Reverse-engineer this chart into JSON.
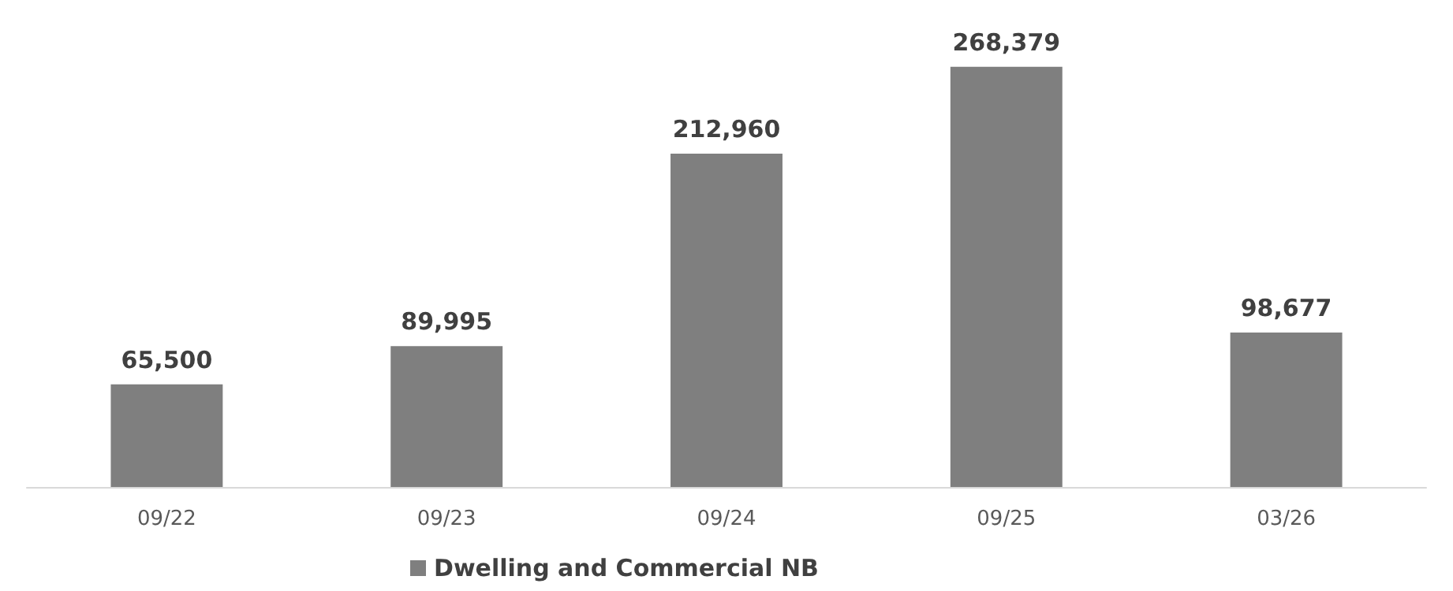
{
  "chart_data": {
    "type": "bar",
    "categories": [
      "09/22",
      "09/23",
      "09/24",
      "09/25",
      "03/26"
    ],
    "series": [
      {
        "name": "Dwelling and Commercial NB",
        "color": "#7f7f7f",
        "values": [
          65500,
          89995,
          212960,
          268379,
          98677
        ],
        "value_labels": [
          "65,500",
          "89,995",
          "212,960",
          "268,379",
          "98,677"
        ]
      }
    ],
    "legend": "bottom"
  }
}
